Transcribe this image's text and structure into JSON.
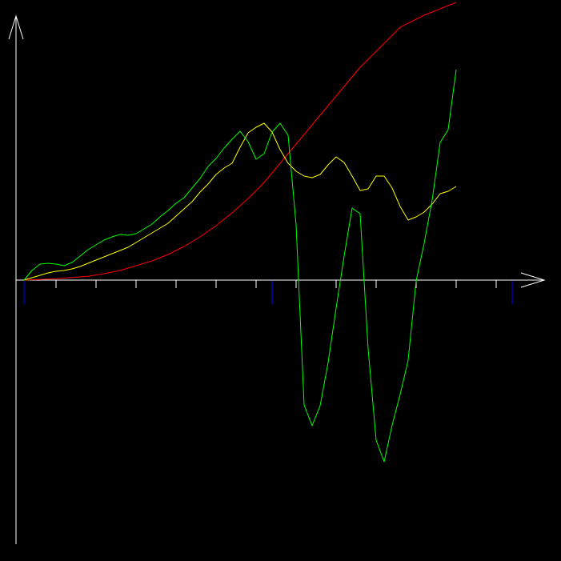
{
  "chart_data": {
    "type": "line",
    "title": "",
    "xlabel": "",
    "ylabel": "",
    "grid": false,
    "legend": "none",
    "background": "#000000",
    "axis_color": "#ffffff",
    "marker_color": "#0000ff",
    "x": [
      0,
      1,
      2,
      3,
      4,
      5,
      6,
      7,
      8,
      9,
      10,
      11,
      12,
      13,
      14,
      15,
      16,
      17,
      18,
      19,
      20,
      21,
      22,
      23,
      24,
      25,
      26,
      27,
      28,
      29,
      30,
      31,
      32,
      33,
      34,
      35,
      36,
      37,
      38,
      39,
      40,
      41,
      42,
      43,
      44,
      45,
      46,
      47,
      48,
      49,
      50,
      51,
      52,
      53,
      54
    ],
    "xlim": [
      -1,
      65
    ],
    "ylim": [
      -330,
      330
    ],
    "x_ticks": [
      4,
      9,
      14,
      19,
      24,
      29,
      34,
      39,
      44,
      49,
      54,
      59
    ],
    "x_markers": [
      0,
      31,
      61
    ],
    "series": [
      {
        "color": "#ff0000",
        "values": [
          0,
          0.4,
          0.8,
          1.2,
          1.6,
          2.4,
          3.2,
          4.0,
          4.8,
          6.4,
          8.0,
          10,
          12,
          15,
          18,
          21,
          24,
          28,
          32,
          37,
          42,
          48,
          54,
          61,
          68,
          76,
          84,
          93,
          102,
          112,
          122,
          134,
          146,
          158,
          170,
          182,
          194,
          206,
          218,
          230,
          242,
          254,
          266,
          276,
          286,
          296,
          306,
          316,
          321,
          326,
          331,
          335,
          339,
          343,
          347
        ]
      },
      {
        "color": "#ffff00",
        "values": [
          0,
          3,
          6,
          9,
          11,
          12,
          14,
          17,
          21,
          25,
          29,
          33,
          37,
          41,
          47,
          53,
          59,
          65,
          71,
          80,
          89,
          98,
          110,
          120,
          132,
          140,
          146,
          166,
          184,
          191,
          196,
          185,
          163,
          146,
          136,
          130,
          128,
          132,
          144,
          154,
          147,
          130,
          112,
          114,
          130,
          130,
          115,
          92,
          75,
          79,
          85,
          95,
          108,
          111,
          117
        ]
      },
      {
        "color": "#00ff00",
        "values": [
          0,
          12,
          20,
          21,
          20,
          18,
          22,
          30,
          38,
          44,
          50,
          54,
          57,
          56,
          58,
          64,
          70,
          79,
          87,
          96,
          103,
          115,
          127,
          142,
          152,
          165,
          176,
          186,
          173,
          151,
          158,
          185,
          196,
          181,
          69,
          -156,
          -182,
          -157,
          -103,
          -35,
          30,
          90,
          83,
          -86,
          -200,
          -227,
          -181,
          -143,
          -100,
          -1,
          46,
          100,
          172,
          188,
          263
        ]
      }
    ]
  }
}
